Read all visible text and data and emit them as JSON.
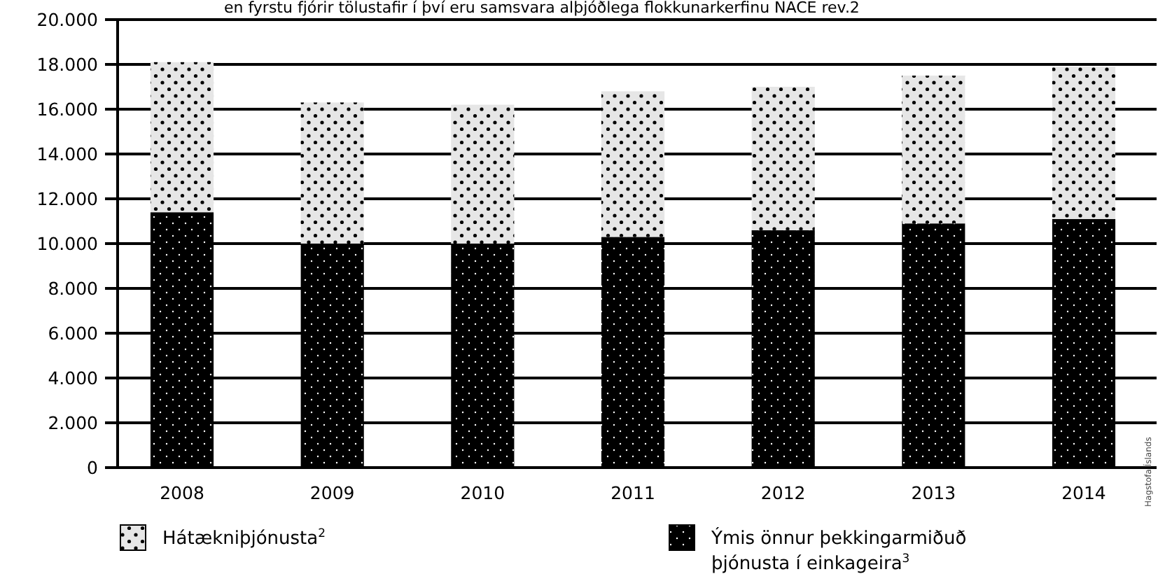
{
  "chart_data": {
    "type": "bar",
    "subtitle": "en fyrstu fjórir tölustafir í því eru samsvara alþjóðlega flokkunarkerfinu NACE rev.2",
    "categories": [
      "2008",
      "2009",
      "2010",
      "2011",
      "2012",
      "2013",
      "2014"
    ],
    "stacked": true,
    "series": [
      {
        "name": "Ýmis önnur þekkingarmiðuð þjónusta í einkageira$^{3}$",
        "color": "#000000",
        "values": [
          11400,
          10000,
          10000,
          10300,
          10600,
          10900,
          11100
        ]
      },
      {
        "name": "Hátækniþjónusta$^{2}$",
        "color": "#e6e6e6",
        "values": [
          6700,
          6300,
          6200,
          6500,
          6400,
          6600,
          6800
        ]
      }
    ],
    "ylim": [
      0,
      20000
    ],
    "yticks": [
      {
        "value": 0,
        "label": "0"
      },
      {
        "value": 2000,
        "label": "2.000"
      },
      {
        "value": 4000,
        "label": "4.000"
      },
      {
        "value": 6000,
        "label": "6.000"
      },
      {
        "value": 8000,
        "label": "8.000"
      },
      {
        "value": 10000,
        "label": "10.000"
      },
      {
        "value": 12000,
        "label": "12.000"
      },
      {
        "value": 14000,
        "label": "14.000"
      },
      {
        "value": 16000,
        "label": "16.000"
      },
      {
        "value": 18000,
        "label": "18.000"
      },
      {
        "value": 20000,
        "label": "20.000"
      }
    ],
    "grid": "y",
    "legend": "bottom",
    "annotations": [
      "Hagstofa Íslands"
    ]
  }
}
